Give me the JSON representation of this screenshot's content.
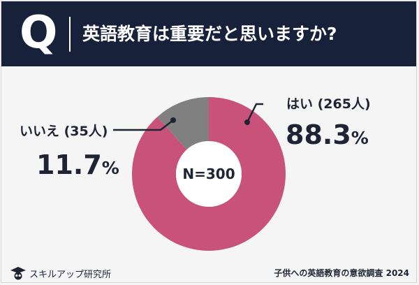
{
  "header": {
    "icon_letter": "Q",
    "question": "英語教育は重要だと思いますか?"
  },
  "chart_data": {
    "type": "pie",
    "style": "donut",
    "center_label": "N=300",
    "slices": [
      {
        "label": "はい (265人)",
        "count": 265,
        "percent": 88.3,
        "percent_label": "88.3",
        "color": "#c9527a"
      },
      {
        "label": "いいえ (35人)",
        "count": 35,
        "percent": 11.7,
        "percent_label": "11.7",
        "color": "#808080"
      }
    ],
    "percent_symbol": "%"
  },
  "footer": {
    "logo_text": "スキルアップ研究所",
    "source": "子供への英語教育の意欲調査 2024"
  },
  "colors": {
    "header_bg": "#17213a",
    "background": "#f5f5f5",
    "yes": "#c9527a",
    "no": "#808080"
  }
}
